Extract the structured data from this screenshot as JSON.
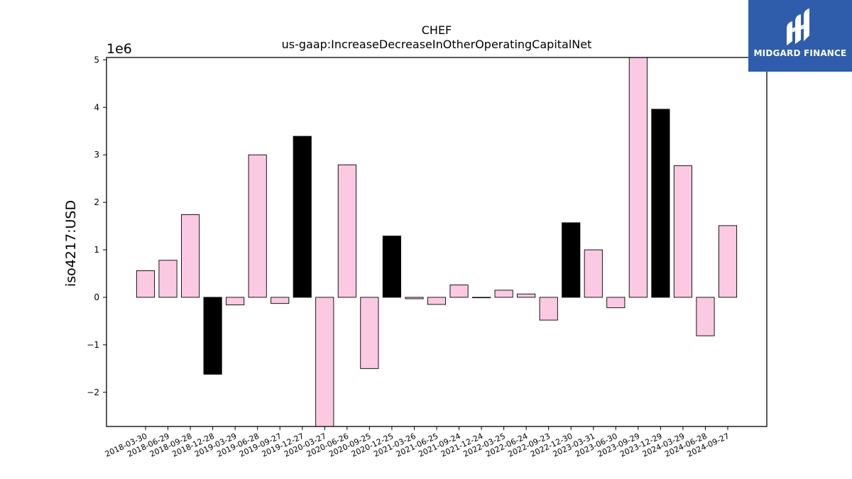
{
  "chart_data": {
    "type": "bar",
    "title": "CHEF",
    "subtitle": "us-gaap:IncreaseDecreaseInOtherOperatingCapitalNet",
    "ylabel": "iso4217:USD",
    "xlabel": "",
    "offset_label": "1e6",
    "ylim": [
      -2.72,
      5.05
    ],
    "yticks": [
      -2,
      -1,
      0,
      1,
      2,
      3,
      4,
      5
    ],
    "ytick_labels": [
      "−2",
      "−1",
      "0",
      "1",
      "2",
      "3",
      "4",
      "5"
    ],
    "categories": [
      "2018-03-30",
      "2018-06-29",
      "2018-09-28",
      "2018-12-28",
      "2019-03-29",
      "2019-06-28",
      "2019-09-27",
      "2019-12-27",
      "2020-03-27",
      "2020-06-26",
      "2020-09-25",
      "2020-12-25",
      "2021-03-26",
      "2021-06-25",
      "2021-09-24",
      "2021-12-24",
      "2022-03-25",
      "2022-06-24",
      "2022-09-23",
      "2022-12-30",
      "2023-03-31",
      "2023-06-30",
      "2023-09-29",
      "2023-12-29",
      "2024-03-29",
      "2024-06-28",
      "2024-09-27"
    ],
    "values": [
      0.56,
      0.78,
      1.74,
      -1.62,
      -0.16,
      3.0,
      -0.13,
      3.39,
      -2.72,
      2.79,
      -1.5,
      1.29,
      -0.03,
      -0.15,
      0.26,
      -0.01,
      0.15,
      0.07,
      -0.48,
      1.57,
      1.0,
      -0.22,
      5.05,
      3.96,
      2.77,
      -0.81,
      1.51
    ],
    "bar_colors": [
      "#fcc9e3",
      "#fcc9e3",
      "#fcc9e3",
      "#000000",
      "#fcc9e3",
      "#fcc9e3",
      "#fcc9e3",
      "#000000",
      "#fcc9e3",
      "#fcc9e3",
      "#fcc9e3",
      "#000000",
      "#fcc9e3",
      "#fcc9e3",
      "#fcc9e3",
      "#fcc9e3",
      "#fcc9e3",
      "#fcc9e3",
      "#fcc9e3",
      "#000000",
      "#fcc9e3",
      "#fcc9e3",
      "#fcc9e3",
      "#000000",
      "#fcc9e3",
      "#fcc9e3",
      "#fcc9e3"
    ],
    "grid": false,
    "legend": "none"
  },
  "logo": {
    "text": "MIDGARD FINANCE",
    "color": "#2f5dab"
  }
}
